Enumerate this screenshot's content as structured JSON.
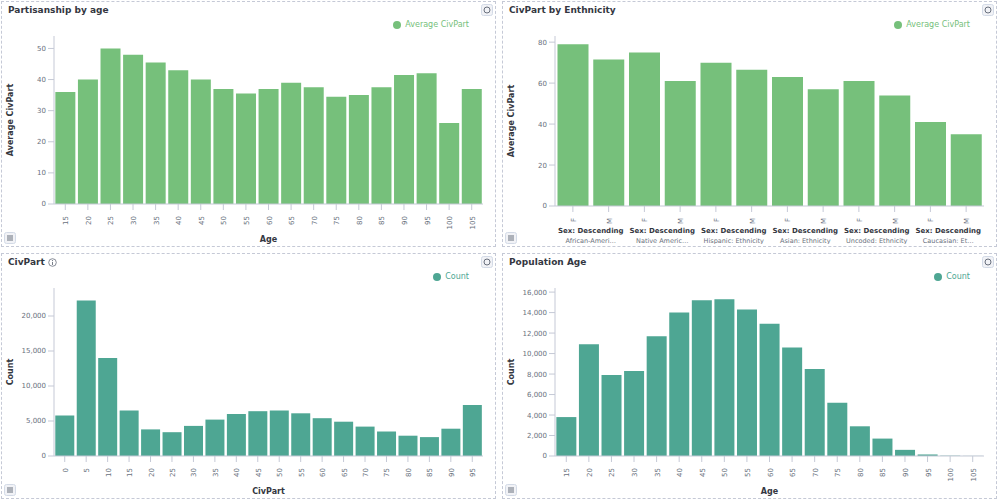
{
  "chart_data": [
    {
      "type": "bar",
      "title": "Partisanship by age",
      "x_label": "Age",
      "y_label": "Average CivPart",
      "categories": [
        "15",
        "20",
        "25",
        "30",
        "35",
        "40",
        "45",
        "50",
        "55",
        "60",
        "65",
        "70",
        "75",
        "80",
        "85",
        "90",
        "95",
        "100",
        "105"
      ],
      "series": [
        {
          "name": "Average CivPart",
          "color": "#76c07b",
          "values": [
            36,
            40,
            50,
            48,
            45.5,
            43,
            40,
            37,
            35.5,
            37,
            39,
            37.5,
            34.5,
            35,
            37.5,
            41.5,
            42,
            26,
            37
          ]
        }
      ],
      "ylim": [
        0,
        54
      ],
      "yticks": [
        0,
        10,
        20,
        30,
        40,
        50
      ],
      "grid": false,
      "legend": "top-right"
    },
    {
      "type": "bar",
      "title": "CivPart by Enthnicity",
      "y_label": "Average CivPart",
      "categories": [
        "F",
        "M",
        "F",
        "M",
        "F",
        "M",
        "F",
        "M",
        "F",
        "M",
        "F",
        "M"
      ],
      "group_title": "Sex: Descending",
      "groups": [
        "African-Ameri…",
        "Native Americ…",
        "Hispanic: Ethnicity",
        "Asian: Ethnicity",
        "Uncoded: Ethnicity",
        "Caucasian: Et…"
      ],
      "series": [
        {
          "name": "Average CivPart",
          "color": "#76c07b",
          "values": [
            79,
            71.5,
            75,
            61,
            70,
            66.5,
            63,
            57,
            61,
            54,
            41,
            35
          ]
        }
      ],
      "ylim": [
        0,
        83
      ],
      "yticks": [
        0,
        20,
        40,
        60,
        80
      ],
      "grid": false,
      "legend": "top-right"
    },
    {
      "type": "bar",
      "title": "CivPart",
      "x_label": "CivPart",
      "y_label": "Count",
      "categories": [
        "0",
        "5",
        "10",
        "15",
        "20",
        "25",
        "30",
        "35",
        "40",
        "45",
        "50",
        "55",
        "60",
        "65",
        "70",
        "75",
        "80",
        "85",
        "90",
        "95"
      ],
      "series": [
        {
          "name": "Count",
          "color": "#4ea693",
          "values": [
            5800,
            22200,
            14000,
            6500,
            3800,
            3400,
            4300,
            5200,
            6000,
            6400,
            6500,
            6100,
            5400,
            4900,
            4200,
            3500,
            2900,
            2700,
            3900,
            7300
          ]
        }
      ],
      "ylim": [
        0,
        24000
      ],
      "yticks": [
        0,
        {
          "value": 5000,
          "label": "5,000"
        },
        {
          "value": 10000,
          "label": "10,000"
        },
        {
          "value": 15000,
          "label": "15,000"
        },
        {
          "value": 20000,
          "label": "20,000"
        }
      ],
      "grid": false,
      "legend": "top-right"
    },
    {
      "type": "bar",
      "title": "Population Age",
      "x_label": "Age",
      "y_label": "Count",
      "categories": [
        "15",
        "20",
        "25",
        "30",
        "35",
        "40",
        "45",
        "50",
        "55",
        "60",
        "65",
        "70",
        "75",
        "80",
        "85",
        "90",
        "95",
        "100",
        "105"
      ],
      "series": [
        {
          "name": "Count",
          "color": "#4ea693",
          "values": [
            3800,
            10900,
            7900,
            8300,
            11700,
            14000,
            15200,
            15300,
            14300,
            12900,
            10600,
            8500,
            5200,
            2900,
            1700,
            600,
            150,
            30,
            10
          ]
        }
      ],
      "ylim": [
        0,
        16400
      ],
      "yticks": [
        0,
        {
          "value": 2000,
          "label": "2,000"
        },
        {
          "value": 4000,
          "label": "4,000"
        },
        {
          "value": 6000,
          "label": "6,000"
        },
        {
          "value": 8000,
          "label": "8,000"
        },
        {
          "value": 10000,
          "label": "10,000"
        },
        {
          "value": 12000,
          "label": "12,000"
        },
        {
          "value": 14000,
          "label": "14,000"
        },
        {
          "value": 16000,
          "label": "16,000"
        }
      ],
      "grid": false,
      "legend": "top-right"
    }
  ]
}
